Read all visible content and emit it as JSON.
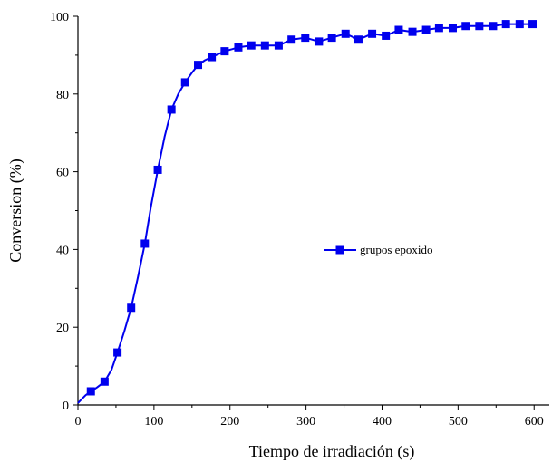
{
  "chart_data": {
    "type": "line",
    "title": "",
    "xlabel": "Tiempo de irradiación (s)",
    "ylabel": "Conversion (%)",
    "xlim": [
      0,
      620
    ],
    "ylim": [
      0,
      100
    ],
    "xticks": [
      0,
      100,
      200,
      300,
      400,
      500,
      600
    ],
    "yticks": [
      0,
      20,
      40,
      60,
      80,
      100
    ],
    "grid": false,
    "legend_position": "right-middle",
    "series": [
      {
        "name": "grupos epoxido",
        "color": "#0000ee",
        "marker": "square",
        "markers": [
          {
            "x": 17,
            "y": 3.5
          },
          {
            "x": 35,
            "y": 6
          },
          {
            "x": 52,
            "y": 13.5
          },
          {
            "x": 70,
            "y": 25
          },
          {
            "x": 88,
            "y": 41.5
          },
          {
            "x": 105,
            "y": 60.5
          },
          {
            "x": 123,
            "y": 76
          },
          {
            "x": 141,
            "y": 83
          },
          {
            "x": 158,
            "y": 87.5
          },
          {
            "x": 176,
            "y": 89.5
          },
          {
            "x": 193,
            "y": 91
          },
          {
            "x": 211,
            "y": 92
          },
          {
            "x": 228,
            "y": 92.5
          },
          {
            "x": 246,
            "y": 92.5
          },
          {
            "x": 264,
            "y": 92.5
          },
          {
            "x": 281,
            "y": 94
          },
          {
            "x": 299,
            "y": 94.5
          },
          {
            "x": 317,
            "y": 93.5
          },
          {
            "x": 334,
            "y": 94.5
          },
          {
            "x": 352,
            "y": 95.5
          },
          {
            "x": 369,
            "y": 94
          },
          {
            "x": 387,
            "y": 95.5
          },
          {
            "x": 405,
            "y": 95
          },
          {
            "x": 422,
            "y": 96.5
          },
          {
            "x": 440,
            "y": 96
          },
          {
            "x": 458,
            "y": 96.5
          },
          {
            "x": 475,
            "y": 97
          },
          {
            "x": 493,
            "y": 97
          },
          {
            "x": 510,
            "y": 97.5
          },
          {
            "x": 528,
            "y": 97.5
          },
          {
            "x": 546,
            "y": 97.5
          },
          {
            "x": 563,
            "y": 98
          },
          {
            "x": 581,
            "y": 98
          },
          {
            "x": 598,
            "y": 98
          }
        ],
        "line": [
          {
            "x": 0,
            "y": 0.5
          },
          {
            "x": 5,
            "y": 1.5
          },
          {
            "x": 10,
            "y": 2.5
          },
          {
            "x": 17,
            "y": 3.5
          },
          {
            "x": 25,
            "y": 4.5
          },
          {
            "x": 35,
            "y": 6
          },
          {
            "x": 44,
            "y": 9
          },
          {
            "x": 52,
            "y": 13.5
          },
          {
            "x": 61,
            "y": 19
          },
          {
            "x": 70,
            "y": 25
          },
          {
            "x": 79,
            "y": 33
          },
          {
            "x": 88,
            "y": 41.5
          },
          {
            "x": 96,
            "y": 51
          },
          {
            "x": 105,
            "y": 60.5
          },
          {
            "x": 114,
            "y": 69
          },
          {
            "x": 123,
            "y": 76
          },
          {
            "x": 132,
            "y": 80
          },
          {
            "x": 141,
            "y": 83
          },
          {
            "x": 150,
            "y": 85.5
          },
          {
            "x": 158,
            "y": 87.5
          },
          {
            "x": 167,
            "y": 88.7
          },
          {
            "x": 176,
            "y": 89.5
          },
          {
            "x": 193,
            "y": 91
          },
          {
            "x": 211,
            "y": 92
          },
          {
            "x": 228,
            "y": 92.5
          },
          {
            "x": 246,
            "y": 92.5
          },
          {
            "x": 264,
            "y": 92.5
          },
          {
            "x": 281,
            "y": 94
          },
          {
            "x": 299,
            "y": 94.5
          },
          {
            "x": 317,
            "y": 93.5
          },
          {
            "x": 334,
            "y": 94.5
          },
          {
            "x": 352,
            "y": 95.5
          },
          {
            "x": 369,
            "y": 94
          },
          {
            "x": 387,
            "y": 95.5
          },
          {
            "x": 405,
            "y": 95
          },
          {
            "x": 422,
            "y": 96.5
          },
          {
            "x": 440,
            "y": 96
          },
          {
            "x": 458,
            "y": 96.5
          },
          {
            "x": 475,
            "y": 97
          },
          {
            "x": 493,
            "y": 97
          },
          {
            "x": 510,
            "y": 97.5
          },
          {
            "x": 528,
            "y": 97.5
          },
          {
            "x": 546,
            "y": 97.5
          },
          {
            "x": 563,
            "y": 98
          },
          {
            "x": 581,
            "y": 98
          },
          {
            "x": 598,
            "y": 98
          }
        ]
      }
    ]
  }
}
